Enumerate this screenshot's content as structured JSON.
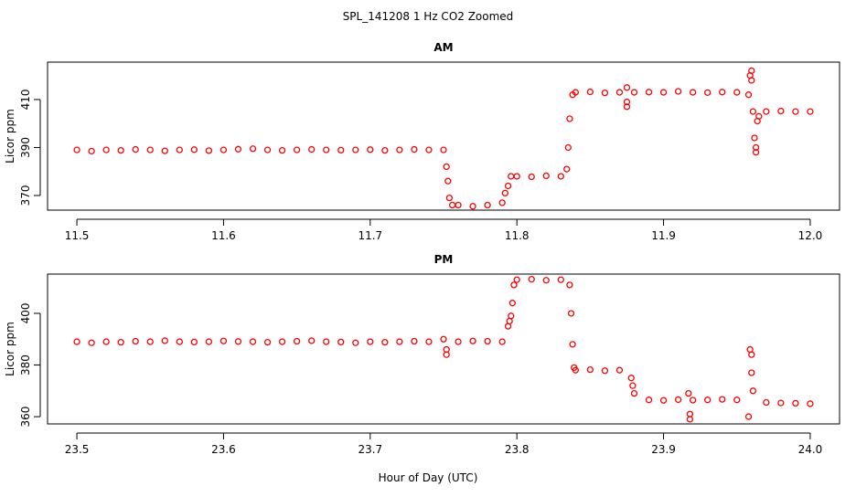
{
  "title": "SPL_141208 1 Hz CO2 Zoomed",
  "xlabel": "Hour of Day (UTC)",
  "chart_data": [
    {
      "type": "scatter",
      "title": "AM",
      "ylabel": "Licor ppm",
      "color": "#ff0000",
      "x": [
        11.5,
        11.51,
        11.52,
        11.53,
        11.54,
        11.55,
        11.56,
        11.57,
        11.58,
        11.59,
        11.6,
        11.61,
        11.62,
        11.63,
        11.64,
        11.65,
        11.66,
        11.67,
        11.68,
        11.69,
        11.7,
        11.71,
        11.72,
        11.73,
        11.74,
        11.75,
        11.752,
        11.753,
        11.754,
        11.756,
        11.76,
        11.77,
        11.78,
        11.79,
        11.792,
        11.794,
        11.796,
        11.8,
        11.81,
        11.82,
        11.83,
        11.834,
        11.835,
        11.836,
        11.838,
        11.84,
        11.85,
        11.86,
        11.87,
        11.875,
        11.875,
        11.875,
        11.88,
        11.89,
        11.9,
        11.91,
        11.92,
        11.93,
        11.94,
        11.95,
        11.958,
        11.959,
        11.96,
        11.96,
        11.961,
        11.962,
        11.963,
        11.963,
        11.964,
        11.965,
        11.97,
        11.98,
        11.99,
        12.0
      ],
      "values": [
        389,
        388.5,
        389,
        388.8,
        389.2,
        389,
        388.6,
        389,
        389.1,
        388.7,
        389,
        389.3,
        389.5,
        389,
        388.8,
        389,
        389.2,
        389,
        388.9,
        389,
        389.1,
        388.8,
        389,
        389.2,
        389,
        389,
        382,
        376,
        369,
        366,
        366,
        365.5,
        366,
        367,
        371,
        374,
        378,
        378,
        377.8,
        378.2,
        378,
        381,
        390,
        402,
        412,
        413,
        413.2,
        412.8,
        413,
        407,
        409,
        415,
        413,
        413.1,
        413,
        413.4,
        413,
        412.9,
        413.1,
        413,
        412,
        420,
        422,
        418,
        405,
        394,
        388,
        390,
        401,
        403,
        405,
        405.2,
        405,
        405
      ],
      "xlim": [
        11.48,
        12.02
      ],
      "ylim": [
        363.9,
        425.6
      ],
      "xticks": [
        11.5,
        11.6,
        11.7,
        11.8,
        11.9,
        {
          "value": 12,
          "label": "12.0"
        }
      ],
      "yticks": [
        370,
        390,
        410
      ]
    },
    {
      "type": "scatter",
      "title": "PM",
      "ylabel": "Licor ppm",
      "color": "#ff0000",
      "x": [
        23.5,
        23.51,
        23.52,
        23.53,
        23.54,
        23.55,
        23.56,
        23.57,
        23.58,
        23.59,
        23.6,
        23.61,
        23.62,
        23.63,
        23.64,
        23.65,
        23.66,
        23.67,
        23.68,
        23.69,
        23.7,
        23.71,
        23.72,
        23.73,
        23.74,
        23.75,
        23.752,
        23.752,
        23.76,
        23.77,
        23.78,
        23.79,
        23.794,
        23.795,
        23.796,
        23.797,
        23.798,
        23.8,
        23.81,
        23.82,
        23.83,
        23.836,
        23.837,
        23.838,
        23.839,
        23.84,
        23.85,
        23.86,
        23.87,
        23.878,
        23.879,
        23.88,
        23.89,
        23.9,
        23.91,
        23.917,
        23.918,
        23.918,
        23.92,
        23.93,
        23.94,
        23.95,
        23.958,
        23.959,
        23.96,
        23.96,
        23.961,
        23.97,
        23.98,
        23.99,
        24.0
      ],
      "values": [
        389,
        388.6,
        389,
        388.8,
        389.2,
        389,
        389.4,
        389,
        388.9,
        389,
        389.3,
        389.1,
        389,
        388.8,
        389,
        389.2,
        389.4,
        389,
        388.9,
        388.6,
        389,
        388.8,
        389,
        389.2,
        389,
        390,
        384,
        386,
        389,
        389.3,
        389.2,
        389,
        395,
        397,
        399,
        404,
        411,
        413,
        413.2,
        412.8,
        413,
        411,
        400,
        388,
        379,
        378,
        378.2,
        377.8,
        378,
        375,
        372,
        369,
        366.5,
        366.3,
        366.6,
        369,
        359,
        361,
        366.4,
        366.5,
        366.7,
        366.5,
        360,
        386,
        384,
        377,
        370,
        365.5,
        365.3,
        365.2,
        365
      ],
      "xlim": [
        23.48,
        24.02
      ],
      "ylim": [
        357.2,
        415.2
      ],
      "xticks": [
        23.5,
        23.6,
        23.7,
        23.8,
        23.9,
        {
          "value": 24,
          "label": "24.0"
        }
      ],
      "yticks": [
        360,
        380,
        400
      ]
    }
  ]
}
